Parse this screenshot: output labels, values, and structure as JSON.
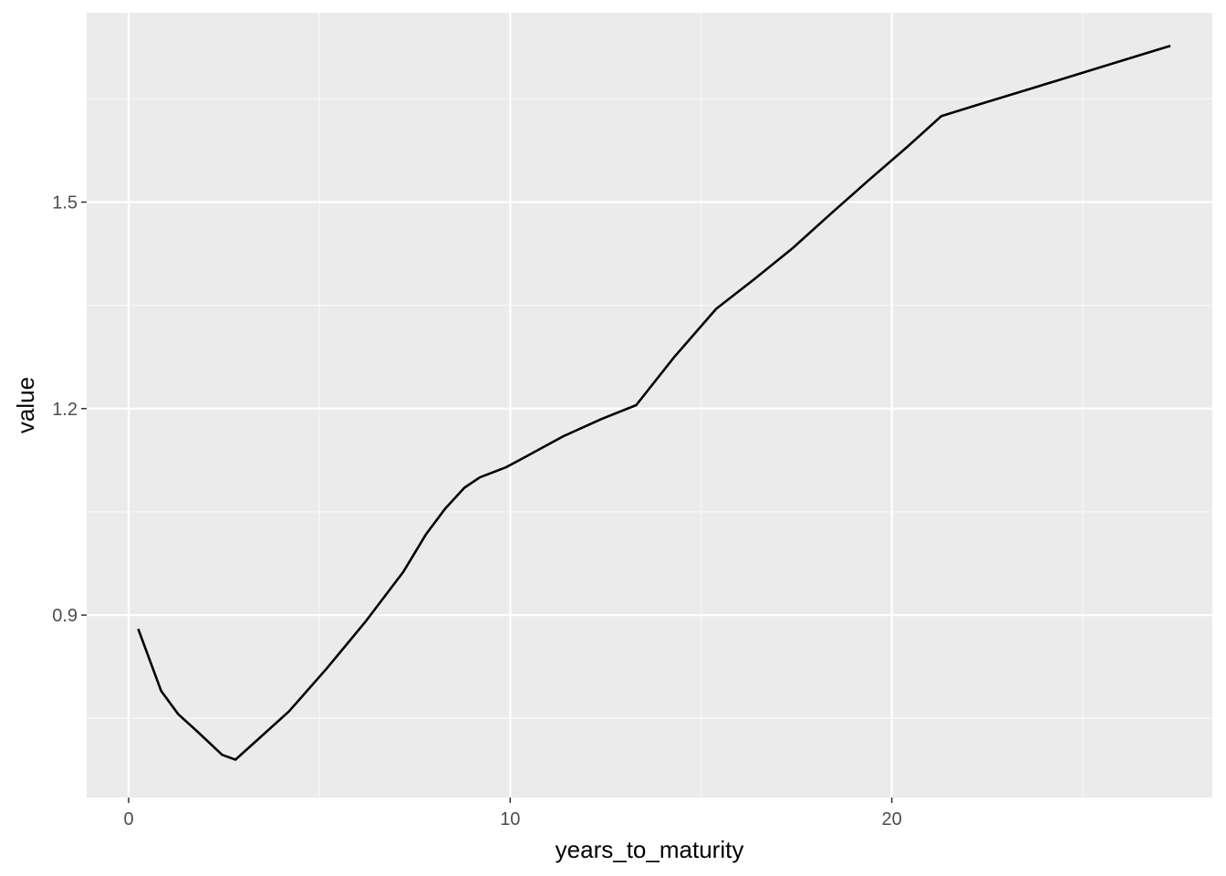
{
  "colors": {
    "panel_background": "#ebebeb",
    "grid_major": "#ffffff",
    "grid_minor": "#f7f7f7",
    "line": "#000000",
    "tick_text": "#4d4d4d"
  },
  "chart_data": {
    "type": "line",
    "title": "",
    "xlabel": "years_to_maturity",
    "ylabel": "value",
    "xlim": [
      -1.1,
      28.4
    ],
    "ylim": [
      0.635,
      1.775
    ],
    "x_ticks": [
      0,
      10,
      20
    ],
    "x_tick_labels": [
      "0",
      "10",
      "20"
    ],
    "x_minor_ticks": [
      5,
      15,
      25
    ],
    "y_ticks": [
      0.9,
      1.2,
      1.5
    ],
    "y_tick_labels": [
      "0.9",
      "1.2",
      "1.5"
    ],
    "y_minor_ticks": [
      0.75,
      1.05,
      1.35,
      1.65
    ],
    "grid": true,
    "legend": "none",
    "series": [
      {
        "x": [
          0.25,
          0.85,
          1.3,
          1.8,
          2.45,
          2.8,
          3.3,
          4.2,
          5.2,
          6.2,
          7.2,
          7.8,
          8.3,
          8.8,
          9.2,
          9.9,
          10.4,
          11.4,
          12.4,
          13.3,
          14.3,
          15.4,
          16.4,
          17.4,
          18.4,
          19.4,
          20.4,
          21.3,
          22.3,
          23.3,
          24.3,
          25.3,
          26.3,
          27.3
        ],
        "y": [
          0.88,
          0.79,
          0.756,
          0.731,
          0.697,
          0.69,
          0.715,
          0.76,
          0.823,
          0.89,
          0.963,
          1.018,
          1.055,
          1.085,
          1.1,
          1.115,
          1.13,
          1.16,
          1.185,
          1.205,
          1.275,
          1.345,
          1.388,
          1.433,
          1.483,
          1.532,
          1.58,
          1.625,
          1.642,
          1.659,
          1.676,
          1.693,
          1.71,
          1.727
        ]
      }
    ]
  }
}
